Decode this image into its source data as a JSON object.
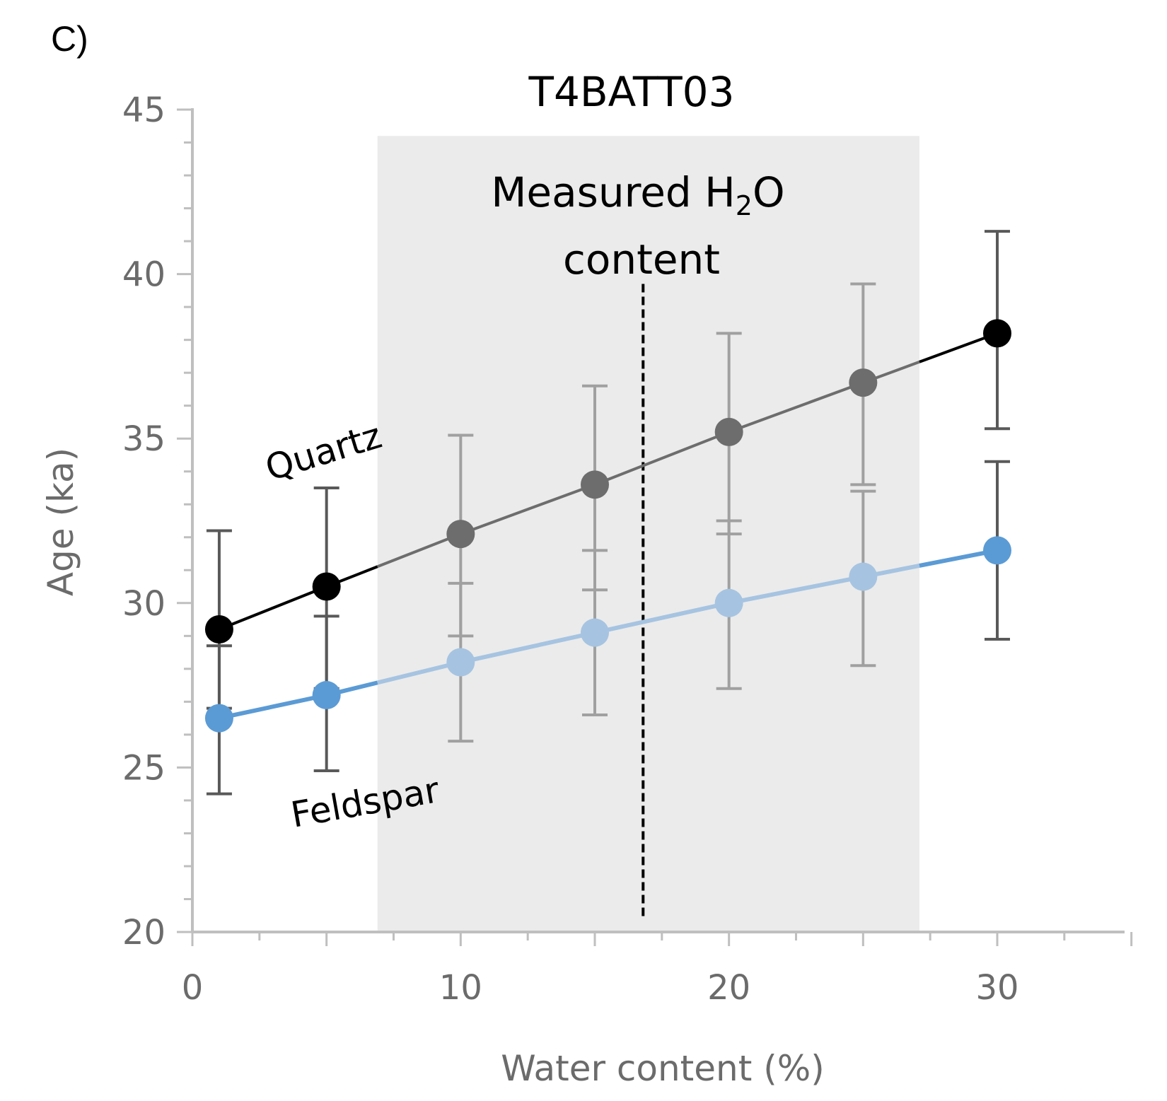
{
  "panel_label": "C)",
  "chart_data": {
    "type": "line",
    "title": "T4BATT03",
    "xlabel": "Water content (%)",
    "ylabel": "Age (ka)",
    "xlim": [
      0,
      35
    ],
    "ylim": [
      20,
      45
    ],
    "xticks": [
      0,
      10,
      20,
      30
    ],
    "yticks": [
      20,
      25,
      30,
      35,
      40,
      45
    ],
    "x": [
      1,
      5,
      10,
      15,
      20,
      25,
      30
    ],
    "series": [
      {
        "name": "Quartz",
        "values": [
          29.2,
          30.5,
          32.1,
          33.6,
          35.2,
          36.7,
          38.2
        ],
        "err_low": [
          26.8,
          27.4,
          29.0,
          30.4,
          32.1,
          33.6,
          35.3
        ],
        "err_high": [
          32.2,
          33.5,
          35.1,
          36.6,
          38.2,
          39.7,
          41.3
        ],
        "colors": [
          "#000000",
          "#000000",
          "#6d6d6d",
          "#6d6d6d",
          "#6d6d6d",
          "#6d6d6d",
          "#000000"
        ]
      },
      {
        "name": "Feldspar",
        "values": [
          26.5,
          27.2,
          28.2,
          29.1,
          30.0,
          30.8,
          31.6
        ],
        "err_low": [
          24.2,
          24.9,
          25.8,
          26.6,
          27.4,
          28.1,
          28.9
        ],
        "err_high": [
          28.7,
          29.6,
          30.6,
          31.6,
          32.5,
          33.4,
          34.3
        ],
        "colors": [
          "#5b9bd5",
          "#5b9bd5",
          "#a6c4e1",
          "#a6c4e1",
          "#a6c4e1",
          "#a6c4e1",
          "#5b9bd5"
        ]
      }
    ],
    "measured_range": [
      6.9,
      27.1
    ],
    "measured_value": 16.8,
    "annotation": {
      "line1": "Measured H",
      "subscript": "2",
      "line1_end": "O",
      "line2": "content"
    },
    "grid": false
  },
  "colors": {
    "shade": "#ebebeb",
    "axis": "#bfbfbf",
    "quartz_line": "#000000",
    "quartz_line_inside": "#6d6d6d",
    "feldspar_line": "#5b9bd5",
    "feldspar_line_inside": "#a6c4e1",
    "errbar_outside": "#595959",
    "errbar_inside": "#a0a0a0"
  }
}
